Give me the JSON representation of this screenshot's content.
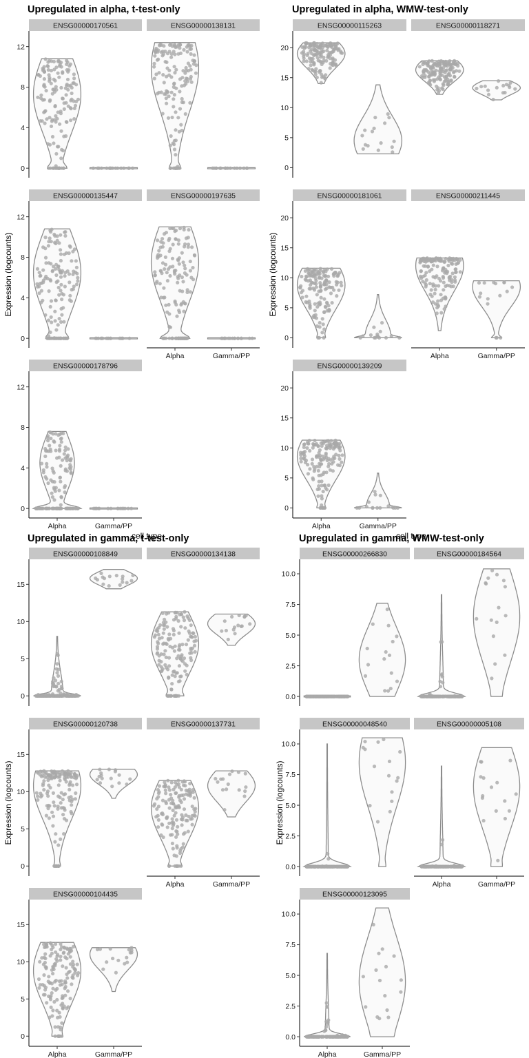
{
  "chart_data": [
    {
      "type": "violin",
      "title": "Upregulated in alpha, t-test-only",
      "xlabel": "cell type",
      "ylabel": "Expression (logcounts)",
      "categories": [
        "Alpha",
        "Gamma/PP"
      ],
      "ylim": [
        -0.6,
        13.2
      ],
      "yticks": [
        0,
        4,
        8,
        12
      ],
      "ytick_labels": [
        "0",
        "4",
        "8",
        "12"
      ],
      "facets": [
        {
          "gene": "ENSG00000170561",
          "groups": [
            {
              "max": 10.8,
              "peak": 7.3,
              "zero_mass": 0.15
            },
            {
              "max": 0,
              "peak": 0,
              "zero_mass": 1
            }
          ]
        },
        {
          "gene": "ENSG00000138131",
          "groups": [
            {
              "max": 12.4,
              "peak": 9.9,
              "zero_mass": 0.1
            },
            {
              "max": 0,
              "peak": 0,
              "zero_mass": 1
            }
          ]
        },
        {
          "gene": "ENSG00000135447",
          "groups": [
            {
              "max": 10.8,
              "peak": 6.5,
              "zero_mass": 0.15
            },
            {
              "max": 0,
              "peak": 0,
              "zero_mass": 1
            }
          ]
        },
        {
          "gene": "ENSG00000197635",
          "groups": [
            {
              "max": 11.0,
              "peak": 7.5,
              "zero_mass": 0.25
            },
            {
              "max": 0,
              "peak": 0,
              "zero_mass": 1
            }
          ]
        },
        {
          "gene": "ENSG00000178796",
          "groups": [
            {
              "max": 7.6,
              "peak": 4.5,
              "zero_mass": 0.45
            },
            {
              "max": 0,
              "peak": 0,
              "zero_mass": 1
            }
          ]
        }
      ]
    },
    {
      "type": "violin",
      "title": "Upregulated in alpha, WMW-test-only",
      "xlabel": "cell type",
      "ylabel": "Expression (logcounts)",
      "categories": [
        "Alpha",
        "Gamma/PP"
      ],
      "ylim": [
        -1.1,
        22.2
      ],
      "yticks": [
        0,
        5,
        10,
        15,
        20
      ],
      "ytick_labels": [
        "0",
        "5",
        "10",
        "15",
        "20"
      ],
      "facets": [
        {
          "gene": "ENSG00000115263",
          "groups": [
            {
              "max": 20.8,
              "peak": 19.0,
              "zero_mass": 0,
              "min": 14.0
            },
            {
              "max": 13.8,
              "peak": 4.5,
              "zero_mass": 0,
              "min": 2.3
            }
          ]
        },
        {
          "gene": "ENSG00000118271",
          "groups": [
            {
              "max": 17.8,
              "peak": 16.3,
              "zero_mass": 0,
              "min": 12.2
            },
            {
              "max": 14.5,
              "peak": 13.3,
              "zero_mass": 0,
              "min": 11.3
            }
          ]
        },
        {
          "gene": "ENSG00000181061",
          "groups": [
            {
              "max": 11.6,
              "peak": 8.8,
              "zero_mass": 0.05
            },
            {
              "max": 7.2,
              "peak": 0.5,
              "zero_mass": 0.4
            }
          ]
        },
        {
          "gene": "ENSG00000211445",
          "groups": [
            {
              "max": 13.3,
              "peak": 12.0,
              "zero_mass": 0,
              "min": 1.2
            },
            {
              "max": 9.5,
              "peak": 8.5,
              "zero_mass": 0.1
            }
          ]
        },
        {
          "gene": "ENSG00000139209",
          "groups": [
            {
              "max": 11.3,
              "peak": 8.6,
              "zero_mass": 0.05
            },
            {
              "max": 5.8,
              "peak": 0.4,
              "zero_mass": 0.45
            }
          ]
        }
      ]
    },
    {
      "type": "violin",
      "title": "Upregulated in gamma, t-test-only",
      "xlabel": "cell type",
      "ylabel": "Expression (logcounts)",
      "categories": [
        "Alpha",
        "Gamma/PP"
      ],
      "ylim": [
        -0.9,
        17.9
      ],
      "yticks": [
        0,
        5,
        10,
        15
      ],
      "ytick_labels": [
        "0",
        "5",
        "10",
        "15"
      ],
      "facets": [
        {
          "gene": "ENSG00000108849",
          "groups": [
            {
              "max": 8.0,
              "peak": 0.3,
              "zero_mass": 0.7
            },
            {
              "max": 17.0,
              "peak": 15.8,
              "zero_mass": 0,
              "min": 14.4
            }
          ]
        },
        {
          "gene": "ENSG00000134138",
          "groups": [
            {
              "max": 11.3,
              "peak": 7.0,
              "zero_mass": 0.1
            },
            {
              "max": 11.0,
              "peak": 9.7,
              "zero_mass": 0,
              "min": 6.8
            }
          ]
        },
        {
          "gene": "ENSG00000120738",
          "groups": [
            {
              "max": 12.8,
              "peak": 10.8,
              "zero_mass": 0.05
            },
            {
              "max": 13.0,
              "peak": 12.3,
              "zero_mass": 0,
              "min": 9.1
            }
          ]
        },
        {
          "gene": "ENSG00000137731",
          "groups": [
            {
              "max": 11.5,
              "peak": 7.8,
              "zero_mass": 0.08
            },
            {
              "max": 12.8,
              "peak": 10.8,
              "zero_mass": 0,
              "min": 6.6
            }
          ]
        },
        {
          "gene": "ENSG00000104435",
          "groups": [
            {
              "max": 12.6,
              "peak": 8.8,
              "zero_mass": 0.05
            },
            {
              "max": 11.9,
              "peak": 11.0,
              "zero_mass": 0,
              "min": 6.0
            }
          ]
        }
      ]
    },
    {
      "type": "violin",
      "title": "Upregulated in gamma, WMW-test-only",
      "xlabel": "cell type",
      "ylabel": "Expression (logcounts)",
      "categories": [
        "Alpha",
        "Gamma/PP"
      ],
      "ylim": [
        -0.5,
        10.9
      ],
      "yticks": [
        0,
        2.5,
        5,
        7.5,
        10
      ],
      "ytick_labels": [
        "0.0",
        "2.5",
        "5.0",
        "7.5",
        "10.0"
      ],
      "facets": [
        {
          "gene": "ENSG00000266830",
          "groups": [
            {
              "max": 0,
              "peak": 0,
              "zero_mass": 1
            },
            {
              "max": 7.6,
              "peak": 3.0,
              "zero_mass": 0
            }
          ]
        },
        {
          "gene": "ENSG00000184564",
          "groups": [
            {
              "max": 8.3,
              "peak": 0.1,
              "zero_mass": 0.9
            },
            {
              "max": 10.4,
              "peak": 6.5,
              "zero_mass": 0.02
            }
          ]
        },
        {
          "gene": "ENSG00000048540",
          "groups": [
            {
              "max": 10.0,
              "peak": 0.1,
              "zero_mass": 0.95
            },
            {
              "max": 10.5,
              "peak": 8.5,
              "zero_mass": 0.05
            }
          ]
        },
        {
          "gene": "ENSG00000005108",
          "groups": [
            {
              "max": 8.2,
              "peak": 0.1,
              "zero_mass": 0.92
            },
            {
              "max": 9.7,
              "peak": 6.5,
              "zero_mass": 0.05
            }
          ]
        },
        {
          "gene": "ENSG00000123095",
          "groups": [
            {
              "max": 6.8,
              "peak": 0.1,
              "zero_mass": 0.9
            },
            {
              "max": 10.5,
              "peak": 4.5,
              "zero_mass": 0.02
            }
          ]
        }
      ]
    }
  ]
}
